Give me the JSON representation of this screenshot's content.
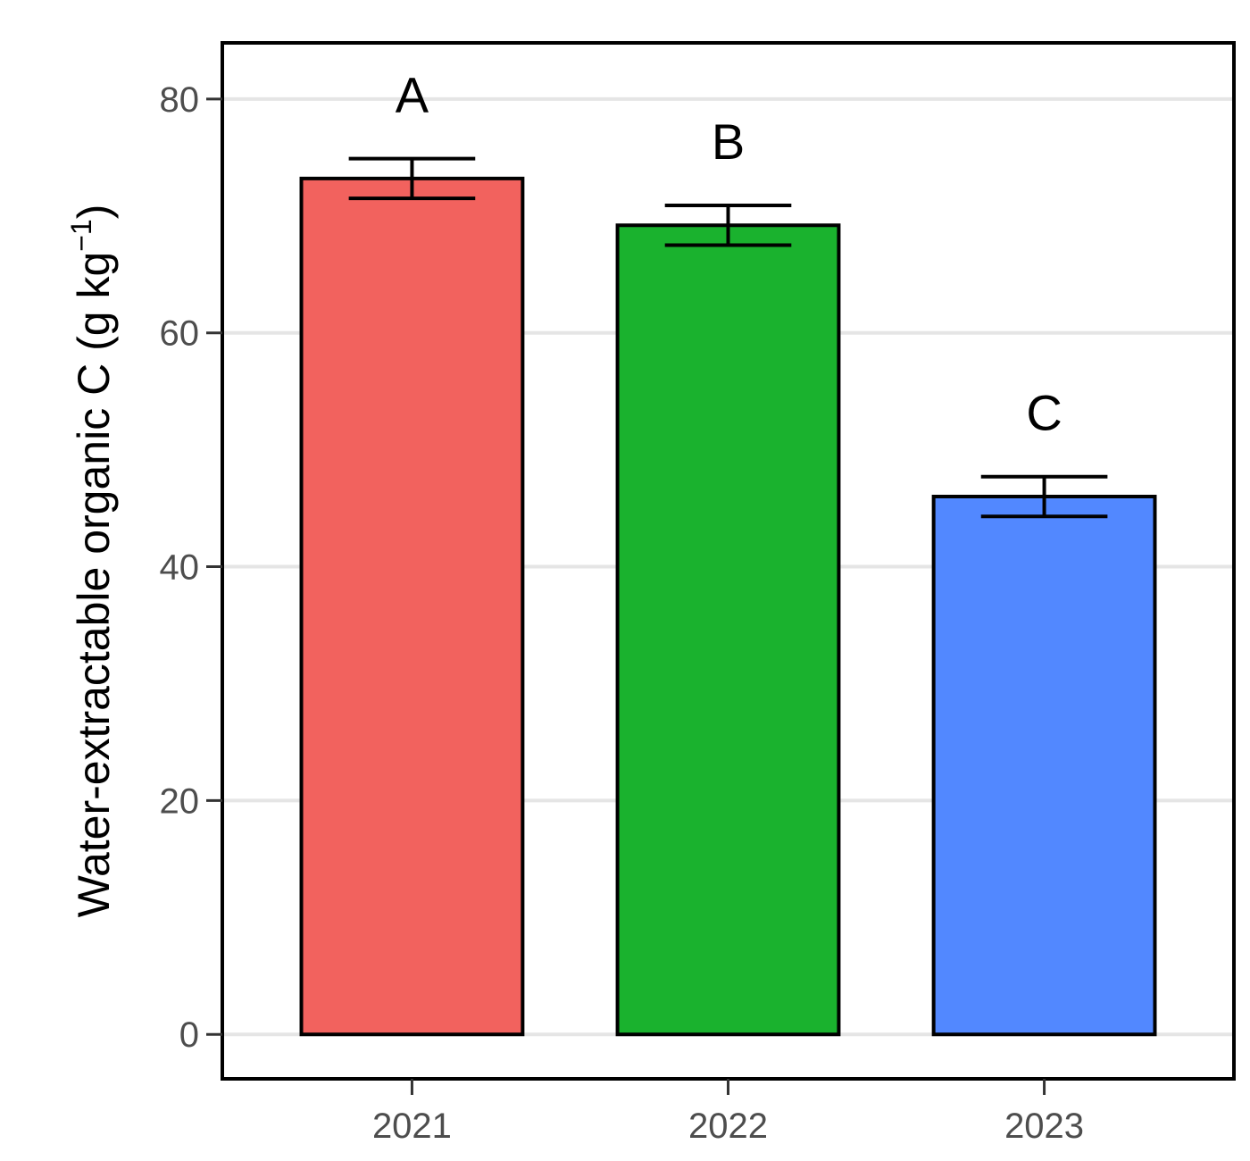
{
  "chart_data": {
    "type": "bar",
    "categories": [
      "2021",
      "2022",
      "2023"
    ],
    "values": [
      73.2,
      69.2,
      46.0
    ],
    "errors": [
      1.7,
      1.7,
      1.7
    ],
    "significance_letters": [
      "A",
      "B",
      "C"
    ],
    "colors": [
      "#f2625e",
      "#1ab22e",
      "#5288ff"
    ],
    "ylabel_main": "Water-extractable organic C (g kg",
    "ylabel_sup": "−1",
    "ylabel_close": ")",
    "xlabel": "",
    "title": "",
    "ylim": [
      -3.8,
      84.8
    ],
    "yticks": [
      0,
      20,
      40,
      60,
      80
    ],
    "grid": "horizontal major",
    "legend": "none"
  }
}
